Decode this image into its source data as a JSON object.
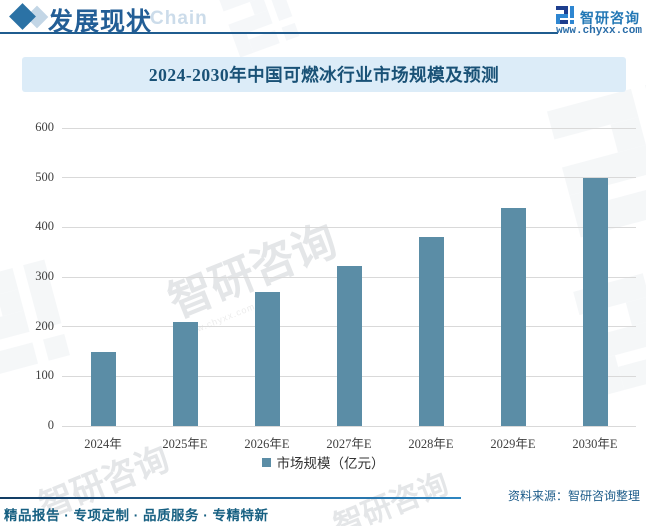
{
  "header": {
    "section_title": "发展现状",
    "section_subtitle": "Chain",
    "brand_name": "智研咨询",
    "brand_url": "www.chyxx.com"
  },
  "chart_data": {
    "type": "bar",
    "title": "2024-2030年中国可燃冰行业市场规模及预测",
    "categories": [
      "2024年",
      "2025年E",
      "2026年E",
      "2027年E",
      "2028年E",
      "2029年E",
      "2030年E"
    ],
    "values": [
      150,
      210,
      270,
      322,
      380,
      438,
      500
    ],
    "series_name": "市场规模（亿元）",
    "xlabel": "",
    "ylabel": "",
    "ylim": [
      0,
      600
    ],
    "ytick_step": 100,
    "grid": true,
    "legend_position": "bottom",
    "bar_color": "#5b8da6"
  },
  "footer": {
    "source_label": "资料来源：智研咨询整理",
    "tagline": "精品报告 · 专项定制 · 品质服务 · 专精特新"
  },
  "watermark": {
    "text": "智研咨询",
    "subtext": "www.chyxx.com"
  },
  "colors": {
    "header_blue": "#235e96",
    "title_band_bg": "#dcecf8",
    "title_text": "#195176",
    "bar": "#5b8da6",
    "gridline": "#d9d9d9",
    "axis_text": "#3f3f3f",
    "footer_blue": "#176082",
    "brand_navy": "#1e3e8e",
    "brand_azure": "#2e86d1"
  }
}
